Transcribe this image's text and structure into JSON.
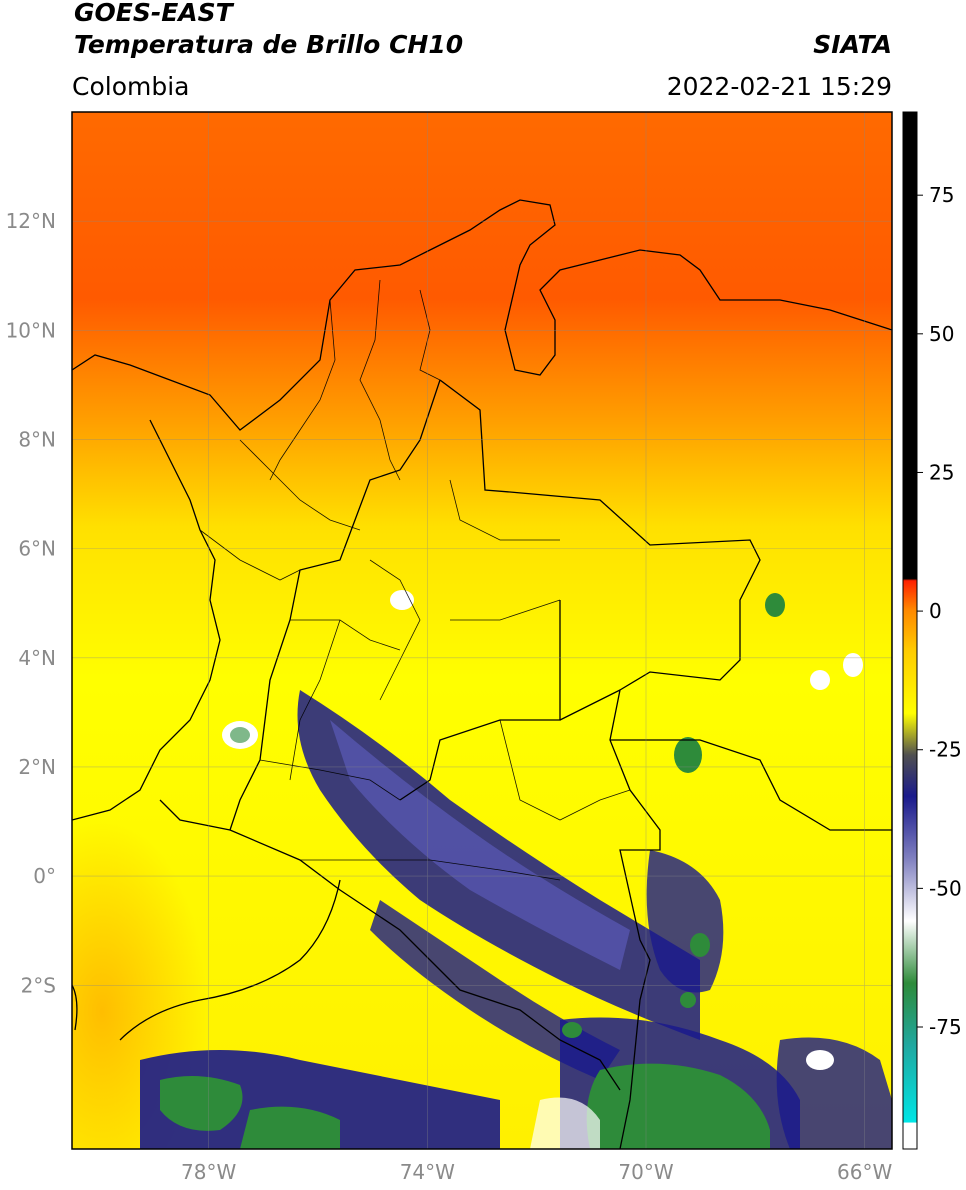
{
  "header": {
    "satellite": "GOES-EAST",
    "product": "Temperatura de Brillo CH10",
    "region": "Colombia",
    "agency": "SIATA",
    "datetime": "2022-02-21 15:29"
  },
  "map": {
    "lon_range": [
      -80.5,
      -65.5
    ],
    "lat_range": [
      -5.0,
      14.0
    ],
    "lat_ticks": [
      {
        "value": 12,
        "label": "12°N"
      },
      {
        "value": 10,
        "label": "10°N"
      },
      {
        "value": 8,
        "label": "8°N"
      },
      {
        "value": 6,
        "label": "6°N"
      },
      {
        "value": 4,
        "label": "4°N"
      },
      {
        "value": 2,
        "label": "2°N"
      },
      {
        "value": 0,
        "label": "0°"
      },
      {
        "value": -2,
        "label": "2°S"
      }
    ],
    "lon_ticks": [
      {
        "value": -78,
        "label": "78°W"
      },
      {
        "value": -74,
        "label": "74°W"
      },
      {
        "value": -70,
        "label": "70°W"
      },
      {
        "value": -66,
        "label": "66°W"
      }
    ],
    "gridlines": true
  },
  "colorbar": {
    "range": [
      -97,
      90
    ],
    "ticks": [
      {
        "value": 75,
        "label": "75"
      },
      {
        "value": 50,
        "label": "50"
      },
      {
        "value": 25,
        "label": "25"
      },
      {
        "value": 0,
        "label": "0"
      },
      {
        "value": -25,
        "label": "-25"
      },
      {
        "value": -50,
        "label": "-50"
      },
      {
        "value": -75,
        "label": "-75"
      }
    ]
  },
  "colors": {
    "warm_sea": "#ff4a00",
    "orange": "#ff9a00",
    "yellow": "#ffff00",
    "cold_blue": "#1a1a8c",
    "cold_green": "#2e8b3a",
    "border": "#000000"
  }
}
